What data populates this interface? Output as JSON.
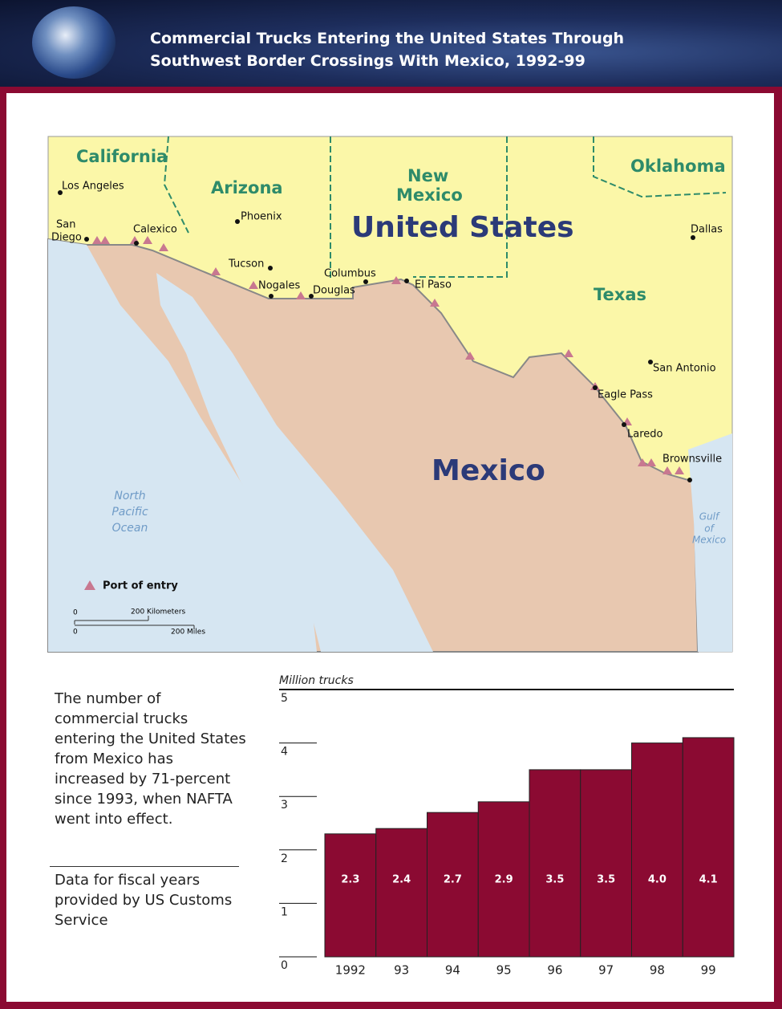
{
  "header": {
    "title": "Commercial Trucks Entering the United States Through Southwest Border Crossings With Mexico, 1992-99"
  },
  "map": {
    "regions": [
      "California",
      "Arizona",
      [
        "New",
        "Mexico"
      ],
      "Oklahoma",
      "Texas",
      "United States",
      "Mexico"
    ],
    "cities": [
      "Los Angeles",
      [
        "San",
        "Diego"
      ],
      "Calexico",
      "Phoenix",
      "Tucson",
      "Nogales",
      "Douglas",
      "Columbus",
      "El Paso",
      "Dallas",
      "San Antonio",
      "Eagle Pass",
      "Laredo",
      "Brownsville"
    ],
    "waters": [
      [
        "North",
        "Pacific",
        "Ocean"
      ],
      [
        "Gulf",
        "of",
        "Mexico"
      ]
    ],
    "legend": "Port of entry",
    "scale": {
      "km": [
        "0",
        "200 Kilometers"
      ],
      "mi": [
        "0",
        "200 Miles"
      ]
    }
  },
  "notes": [
    "The number of commercial trucks entering the United States from Mexico has increased by 71-percent since 1993, when NAFTA went into effect.",
    "Data for fiscal years provided by US Customs Service"
  ],
  "chart_data": {
    "type": "bar",
    "y_label": "Million trucks",
    "categories": [
      "1992",
      "93",
      "94",
      "95",
      "96",
      "97",
      "98",
      "99"
    ],
    "values": [
      2.3,
      2.4,
      2.7,
      2.9,
      3.5,
      3.5,
      4.0,
      4.1
    ],
    "value_labels": [
      "2.3",
      "2.4",
      "2.7",
      "2.9",
      "3.5",
      "3.5",
      "4.0",
      "4.1"
    ],
    "color": "#8b0a32",
    "ylim": [
      0,
      5
    ],
    "yticks": [
      0,
      1,
      2,
      3,
      4,
      5
    ]
  }
}
